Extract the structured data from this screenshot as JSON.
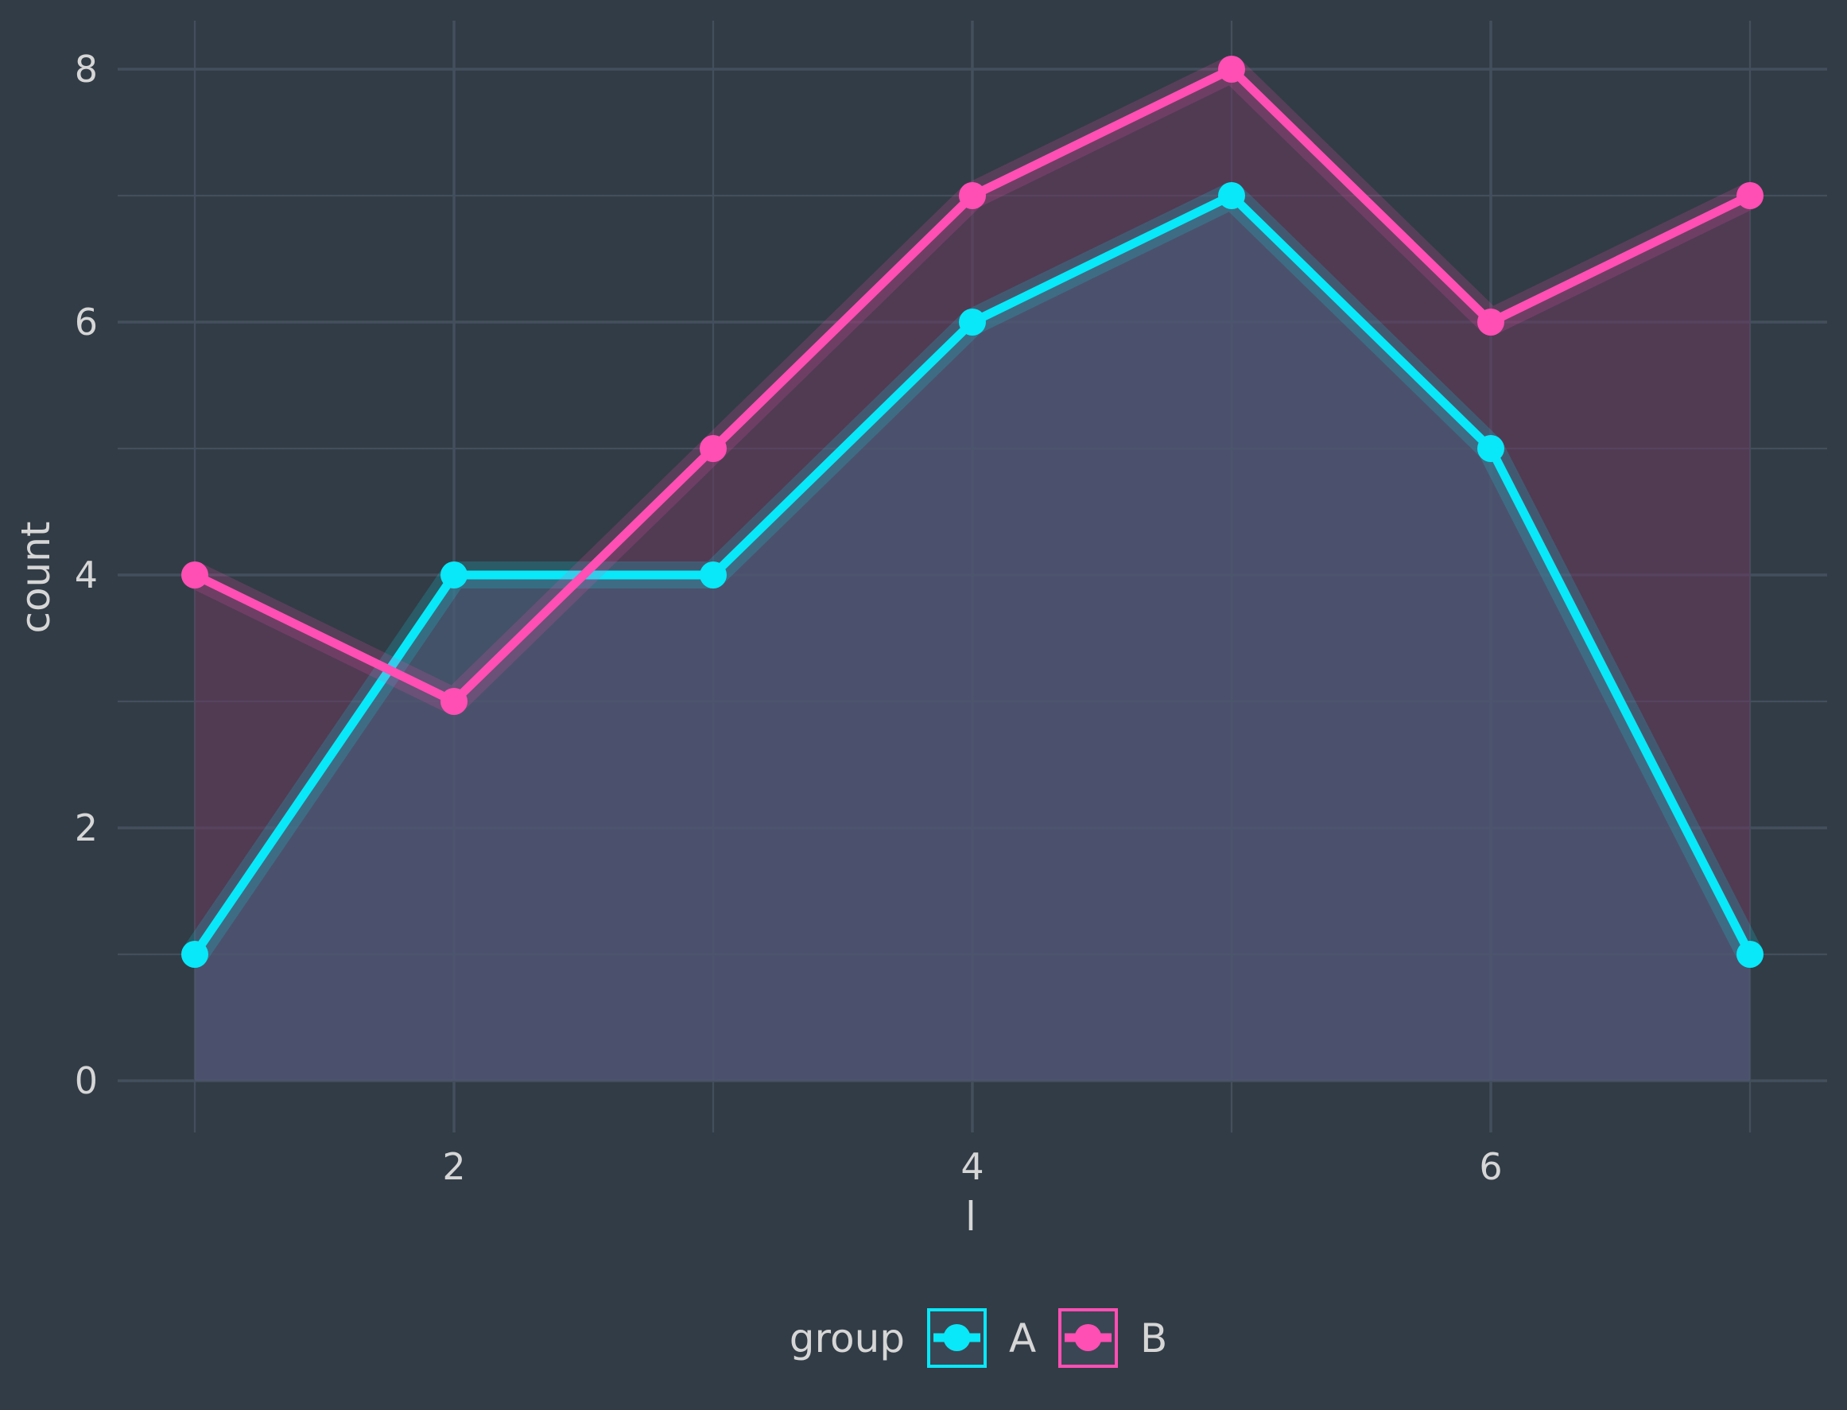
{
  "chart_data": {
    "type": "area",
    "xlabel": "l",
    "ylabel": "count",
    "x": [
      1,
      2,
      3,
      4,
      5,
      6,
      7
    ],
    "xlim": [
      0.7,
      7.3
    ],
    "ylim": [
      0,
      8.4
    ],
    "x_ticks": [
      2,
      4,
      6
    ],
    "y_ticks": [
      0,
      2,
      4,
      6,
      8
    ],
    "grid": true,
    "legend": {
      "title": "group",
      "position": "bottom"
    },
    "series": [
      {
        "name": "A",
        "values": [
          1,
          4,
          4,
          6,
          7,
          5,
          1
        ],
        "color": "#08e8f8"
      },
      {
        "name": "B",
        "values": [
          4,
          3,
          5,
          7,
          8,
          6,
          7
        ],
        "color": "#ff4fb4"
      }
    ],
    "colors": {
      "background": "#323c46",
      "grid": "#444f5d",
      "text": "#d6d6d6"
    }
  }
}
